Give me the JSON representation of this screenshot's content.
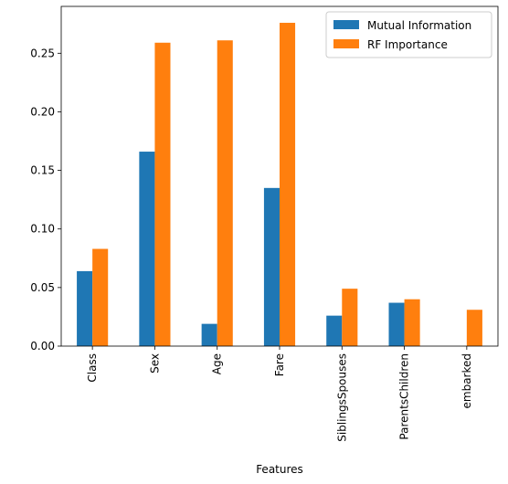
{
  "chart_data": {
    "type": "bar",
    "title": "",
    "xlabel": "Features",
    "ylabel": "",
    "ylim": [
      0,
      0.29
    ],
    "yticks": [
      0.0,
      0.05,
      0.1,
      0.15,
      0.2,
      0.25
    ],
    "ytick_labels": [
      "0.00",
      "0.05",
      "0.10",
      "0.15",
      "0.20",
      "0.25"
    ],
    "categories": [
      "Class",
      "Sex",
      "Age",
      "Fare",
      "SiblingsSpouses",
      "ParentsChildren",
      "embarked"
    ],
    "series": [
      {
        "name": "Mutual Information",
        "color": "#1f77b4",
        "values": [
          0.064,
          0.166,
          0.019,
          0.135,
          0.026,
          0.037,
          0.0
        ]
      },
      {
        "name": "RF Importance",
        "color": "#ff7f0e",
        "values": [
          0.083,
          0.259,
          0.261,
          0.276,
          0.049,
          0.04,
          0.031
        ]
      }
    ],
    "grid": false,
    "legend_position": "top-right"
  }
}
